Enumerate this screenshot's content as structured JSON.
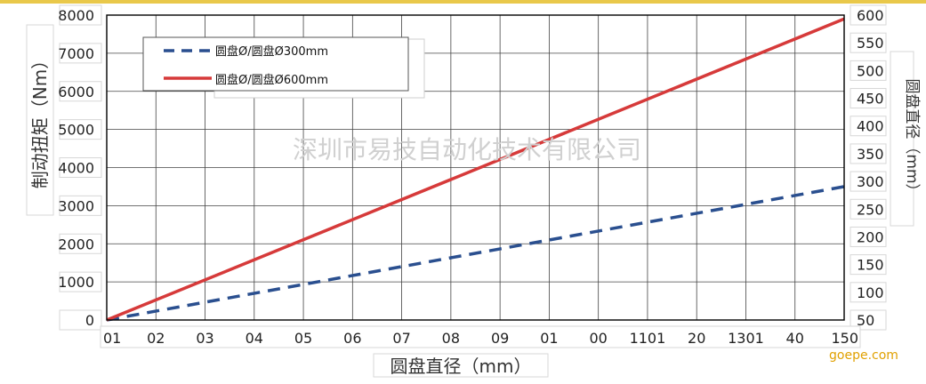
{
  "chart_data": {
    "type": "line",
    "x_ticks": [
      "01",
      "02",
      "03",
      "04",
      "05",
      "06",
      "07",
      "08",
      "09",
      "01",
      "00",
      "1101",
      "20",
      "1301",
      "40",
      "150"
    ],
    "x_index_range": [
      0,
      15
    ],
    "xlabel": "圆盘直径（mm）",
    "ylabel": "制动扭矩（Nm）",
    "ylabel_right": "圆盘直径（mm）",
    "ylim": [
      0,
      8000
    ],
    "y_ticks": [
      0,
      1000,
      2000,
      3000,
      4000,
      5000,
      6000,
      7000,
      8000
    ],
    "ylim_right": [
      50,
      600
    ],
    "y_ticks_right": [
      50,
      100,
      150,
      200,
      250,
      300,
      350,
      400,
      450,
      500,
      550,
      600
    ],
    "grid": true,
    "legend_position": "top-left",
    "series": [
      {
        "name": "圆盘Ø/圆盘Ø300mm",
        "style": "dashed",
        "color": "#2a4f8f",
        "x": [
          0,
          15
        ],
        "y": [
          0,
          3500
        ]
      },
      {
        "name": "圆盘Ø/圆盘Ø600mm",
        "style": "solid",
        "color": "#d63a3a",
        "x": [
          0,
          15
        ],
        "y": [
          0,
          7900
        ]
      }
    ],
    "watermark": "深圳市易技自动化技术有限公司",
    "brand": "goepe.com"
  }
}
